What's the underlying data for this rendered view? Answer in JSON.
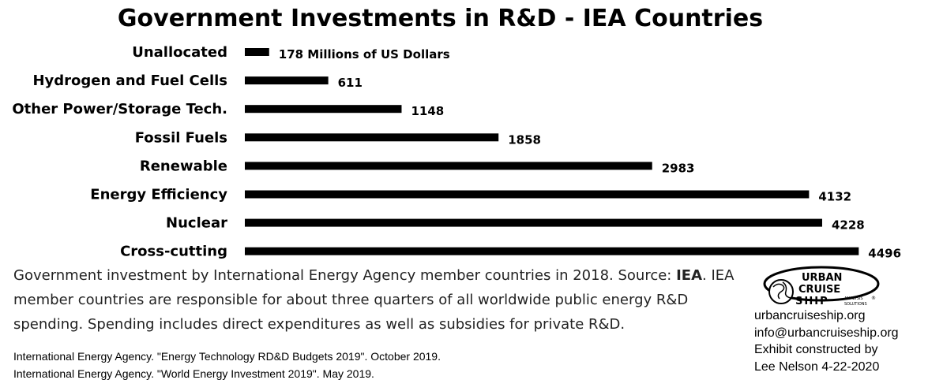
{
  "chart_data": {
    "type": "bar",
    "orientation": "horizontal",
    "title": "Government Investments in R&D - IEA Countries",
    "categories": [
      "Unallocated",
      "Hydrogen and Fuel Cells",
      "Other Power/Storage Tech.",
      "Fossil Fuels",
      "Renewable",
      "Energy Efficiency",
      "Nuclear",
      "Cross-cutting"
    ],
    "values": [
      178,
      611,
      1148,
      1858,
      2983,
      4132,
      4228,
      4496
    ],
    "value_labels": [
      "178 Millions of US Dollars",
      "611",
      "1148",
      "1858",
      "2983",
      "4132",
      "4228",
      "4496"
    ],
    "xlim": [
      0,
      4500
    ],
    "grid": false,
    "legend": "none",
    "bar_color": "#000000"
  },
  "caption": {
    "text": "Government investment by International Energy Agency member countries in 2018. Source: ",
    "source": "IEA",
    "text_end": ".",
    "line2": "IEA member countries are responsible for about three quarters of all worldwide public energy R&D spending. Spending includes direct expenditures as well as subsidies for private R&D."
  },
  "references": [
    "International Energy Agency. \"Energy Technology RD&D Budgets 2019\". October 2019.",
    "International Energy Agency. \"World Energy Investment 2019\". May 2019."
  ],
  "logo": {
    "line1": "URBAN",
    "line2": "CRUISE",
    "line3": "SHIP",
    "tag1": "ANALYSIS",
    "tag2": "SOLUTIONS",
    "mark": "®"
  },
  "credits": {
    "website": "urbancruiseship.org",
    "email": "info@urbancruiseship.org",
    "line3": "Exhibit constructed by",
    "line4": "Lee Nelson 4-22-2020"
  }
}
